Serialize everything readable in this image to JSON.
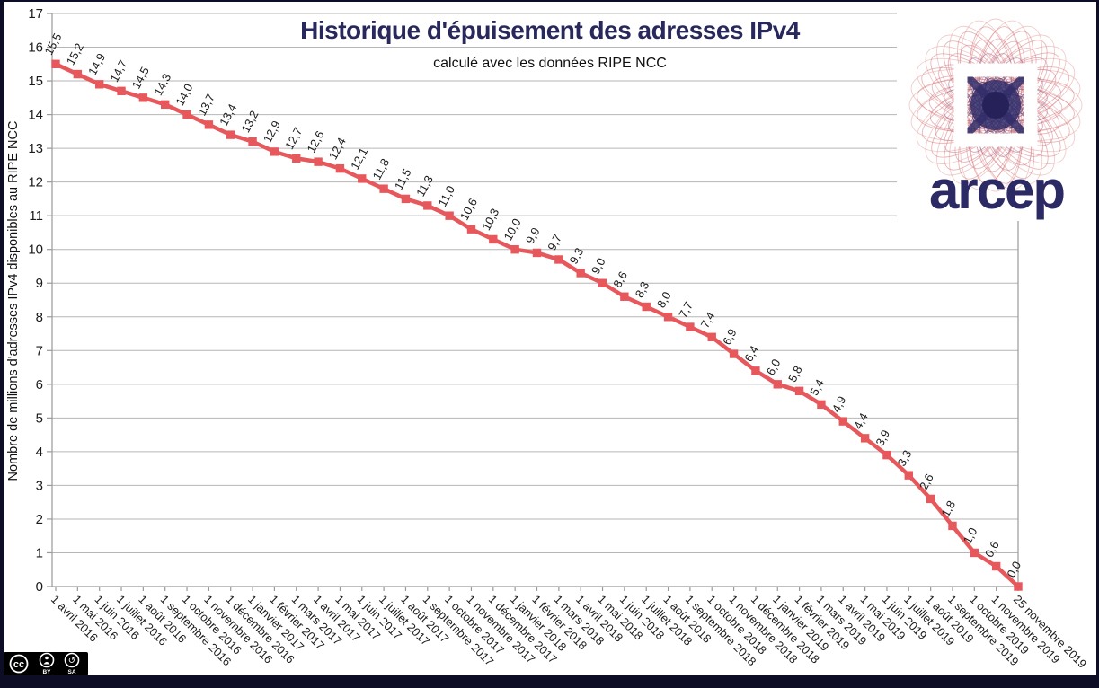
{
  "chart_data": {
    "type": "line",
    "title": "Historique d'épuisement des adresses IPv4",
    "subtitle": "calculé avec les données RIPE NCC",
    "ylabel": "Nombre de millions d'adresses IPv4 disponibles au RIPE NCC",
    "xlabel": "",
    "ylim": [
      0,
      17
    ],
    "ytick_interval": 1,
    "grid": "horizontal",
    "legend": "none",
    "marker": "square",
    "series_color": "#e7585c",
    "label_color": "#1b1b1b",
    "gridline_color": "#b6b6b6",
    "axis_color": "#9a9a9a",
    "categories": [
      "1 avril 2016",
      "1 mai 2016",
      "1 juin 2016",
      "1 juillet 2016",
      "1 août 2016",
      "1 septembre 2016",
      "1 octobre 2016",
      "1 novembre 2016",
      "1 décembre 2016",
      "1 janvier 2017",
      "1 février 2017",
      "1 mars 2017",
      "1 avril 2017",
      "1 mai 2017",
      "1 juin 2017",
      "1 juillet 2017",
      "1 août 2017",
      "1 septembre 2017",
      "1 octobre 2017",
      "1 novembre 2017",
      "1 décembre 2017",
      "1 janvier 2018",
      "1 février 2018",
      "1 mars 2018",
      "1 avril 2018",
      "1 mai 2018",
      "1 juin 2018",
      "1 juillet 2018",
      "1 août 2018",
      "1 septembre 2018",
      "1 octobre 2018",
      "1 novembre 2018",
      "1 décembre 2018",
      "1 janvier 2019",
      "1 février 2019",
      "1 mars 2019",
      "1 avril 2019",
      "1 mai 2019",
      "1 juin 2019",
      "1 juillet 2019",
      "1 août 2019",
      "1 septembre 2019",
      "1 octobre 2019",
      "1 novembre 2019",
      "25 novembre 2019"
    ],
    "values": [
      15.5,
      15.2,
      14.9,
      14.7,
      14.5,
      14.3,
      14.0,
      13.7,
      13.4,
      13.2,
      12.9,
      12.7,
      12.6,
      12.4,
      12.1,
      11.8,
      11.5,
      11.3,
      11.0,
      10.6,
      10.3,
      10.0,
      9.9,
      9.7,
      9.3,
      9.0,
      8.6,
      8.3,
      8.0,
      7.7,
      7.4,
      6.9,
      6.4,
      6.0,
      5.8,
      5.4,
      4.9,
      4.4,
      3.9,
      3.3,
      2.6,
      1.8,
      1.0,
      0.6,
      0.0
    ],
    "point_labels": [
      "15,5",
      "15,2",
      "14,9",
      "14,7",
      "14,5",
      "14,3",
      "14,0",
      "13,7",
      "13,4",
      "13,2",
      "12,9",
      "12,7",
      "12,6",
      "12,4",
      "12,1",
      "11,8",
      "11,5",
      "11,3",
      "11,0",
      "10,6",
      "10,3",
      "10,0",
      "9,9",
      "9,7",
      "9,3",
      "9,0",
      "8,6",
      "8,3",
      "8,0",
      "7,7",
      "7,4",
      "6,9",
      "6,4",
      "6,0",
      "5,8",
      "5,4",
      "4,9",
      "4,4",
      "3,9",
      "3,3",
      "2,6",
      "1,8",
      "1,0",
      "0,6",
      "0,0"
    ]
  },
  "logo": {
    "wordmark": "arcep",
    "wordmark_color": "#2b2a64",
    "pattern_red": "#d97878",
    "pattern_dark": "#332e6a"
  },
  "license_badge": {
    "cc_label": "cc",
    "by_label": "BY",
    "sa_label": "SA",
    "sa_symbol": "↺"
  }
}
